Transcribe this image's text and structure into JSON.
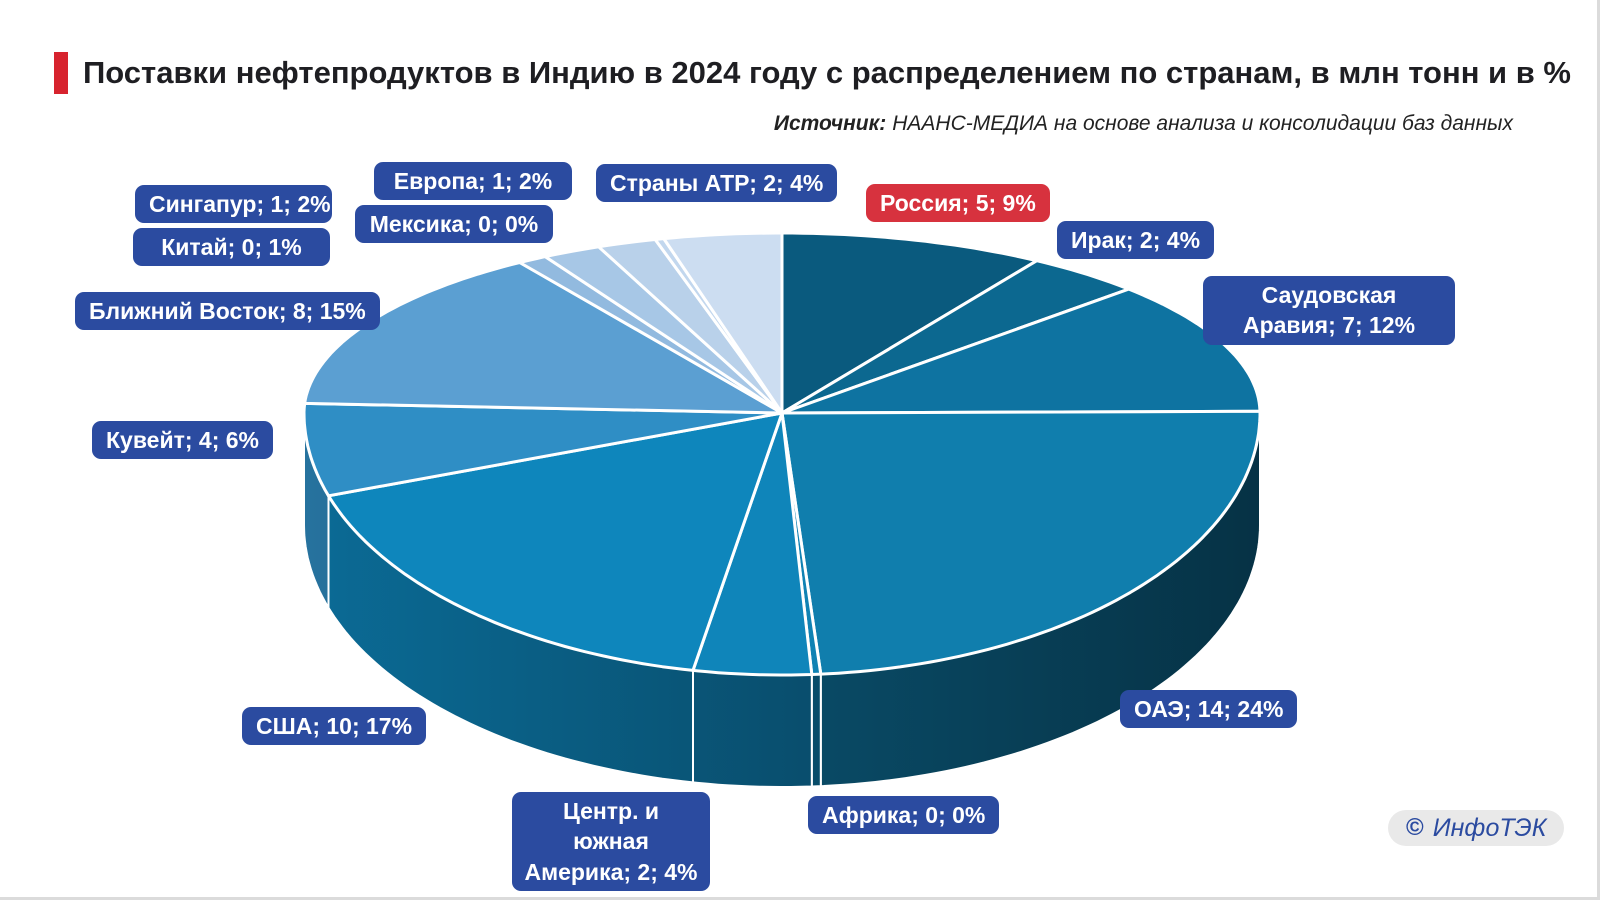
{
  "title": {
    "text": "Поставки нефтепродуктов в Индию в 2024 году с распределением по странам, в млн тонн и в %"
  },
  "source": {
    "label": "Источник:",
    "text": "НААНС-МЕДИА на основе анализа и консолидации баз данных"
  },
  "watermark": {
    "copyright": "©",
    "text": "ИнфоТЭК"
  },
  "colors": {
    "title_accent": "#d7232e",
    "label_bg": "#2b4ba0",
    "label_highlight_bg": "#d7323e",
    "label_text": "#ffffff",
    "watermark_bg": "#e9e9e9",
    "watermark_text": "#2b4ba0",
    "slice_outline": "#ffffff"
  },
  "chart_data": {
    "type": "pie",
    "projection": "3d",
    "title": "Поставки нефтепродуктов в Индию в 2024 году с распределением по странам, в млн тонн и в %",
    "units": [
      "млн тонн",
      "%"
    ],
    "legend_position": "floating-labels",
    "start_angle_deg": 0,
    "direction": "clockwise",
    "slices": [
      {
        "key": "russia",
        "name": "Россия",
        "volume_mt": 5,
        "percent": 9,
        "render_percent": 9,
        "color": "#0a5a7e",
        "label": "Россия; 5; 9%",
        "highlight": true
      },
      {
        "key": "iraq",
        "name": "Ирак",
        "volume_mt": 2,
        "percent": 4,
        "render_percent": 4,
        "color": "#0c6890",
        "label": "Ирак; 2; 4%"
      },
      {
        "key": "saudi-arabia",
        "name": "Саудовская Аравия",
        "volume_mt": 7,
        "percent": 12,
        "render_percent": 12,
        "color": "#0e73a1",
        "label": "Саудовская Аравия; 7; 12%"
      },
      {
        "key": "uae",
        "name": "ОАЭ",
        "volume_mt": 14,
        "percent": 24,
        "render_percent": 24,
        "color": "#107ead",
        "label": "ОАЭ; 14; 24%"
      },
      {
        "key": "africa",
        "name": "Африка",
        "volume_mt": 0,
        "percent": 0,
        "render_percent": 0.3,
        "color": "#1082b3",
        "label": "Африка; 0; 0%"
      },
      {
        "key": "central-south-america",
        "name": "Центр. и южная Америка",
        "volume_mt": 2,
        "percent": 4,
        "render_percent": 4,
        "color": "#0f85ba",
        "label": "Центр. и южная Америка; 2; 4%"
      },
      {
        "key": "usa",
        "name": "США",
        "volume_mt": 10,
        "percent": 17,
        "render_percent": 17,
        "color": "#0e86bc",
        "label": "США; 10; 17%"
      },
      {
        "key": "kuwait",
        "name": "Кувейт",
        "volume_mt": 4,
        "percent": 6,
        "render_percent": 6,
        "color": "#2f8ec5",
        "label": "Кувейт; 4; 6%"
      },
      {
        "key": "middle-east",
        "name": "Ближний Восток",
        "volume_mt": 8,
        "percent": 15,
        "render_percent": 15,
        "color": "#5b9fd2",
        "label": "Ближний Восток; 8; 15%"
      },
      {
        "key": "china",
        "name": "Китай",
        "volume_mt": 0,
        "percent": 1,
        "render_percent": 1,
        "color": "#92badf",
        "label": "Китай; 0; 1%"
      },
      {
        "key": "singapore",
        "name": "Сингапур",
        "volume_mt": 1,
        "percent": 2,
        "render_percent": 2,
        "color": "#a7c7e6",
        "label": "Сингапур; 1; 2%"
      },
      {
        "key": "europe",
        "name": "Европа",
        "volume_mt": 1,
        "percent": 2,
        "render_percent": 2,
        "color": "#b9d1ea",
        "label": "Европа; 1; 2%"
      },
      {
        "key": "mexico",
        "name": "Мексика",
        "volume_mt": 0,
        "percent": 0,
        "render_percent": 0.3,
        "color": "#c2d7ee",
        "label": "Мексика; 0; 0%"
      },
      {
        "key": "apr-countries",
        "name": "Страны АТР",
        "volume_mt": 2,
        "percent": 4,
        "render_percent": 4,
        "color": "#ccddf1",
        "label": "Страны АТР; 2; 4%"
      }
    ]
  }
}
